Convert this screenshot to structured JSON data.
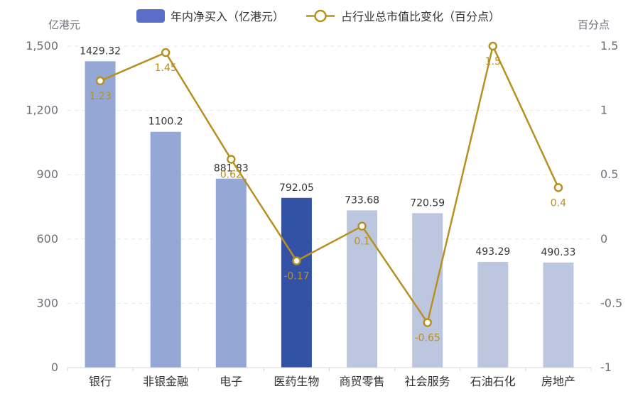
{
  "chart_data": {
    "type": "bar+line",
    "categories": [
      "银行",
      "非银金融",
      "电子",
      "医药生物",
      "商贸零售",
      "社会服务",
      "石油石化",
      "房地产"
    ],
    "series": [
      {
        "name": "年内净买入（亿港元）",
        "type": "bar",
        "axis": "left",
        "values": [
          1429.32,
          1100.2,
          881.83,
          792.05,
          733.68,
          720.59,
          493.29,
          490.33
        ],
        "value_labels": [
          "1429.32",
          "1100.2",
          "881.83",
          "792.05",
          "733.68",
          "720.59",
          "493.29",
          "490.33"
        ],
        "colors": [
          "#95a8d5",
          "#95a8d5",
          "#95a8d5",
          "#3352a6",
          "#bdc6df",
          "#bdc6df",
          "#bdc6df",
          "#bdc6df"
        ]
      },
      {
        "name": "占行业总市值比变化（百分点）",
        "type": "line",
        "axis": "right",
        "values": [
          1.23,
          1.45,
          0.62,
          -0.17,
          0.1,
          -0.65,
          1.5,
          0.4
        ],
        "value_labels": [
          "1.23",
          "1.45",
          "0.62",
          "-0.17",
          "0.1",
          "-0.65",
          "1.5",
          "0.4"
        ],
        "color": "#b8901f"
      }
    ],
    "y_left": {
      "unit": "亿港元",
      "min": 0,
      "max": 1500,
      "ticks": [
        0,
        300,
        600,
        900,
        1200,
        1500
      ],
      "tick_labels": [
        "0",
        "300",
        "600",
        "900",
        "1,200",
        "1,500"
      ]
    },
    "y_right": {
      "unit": "百分点",
      "min": -1,
      "max": 1.5,
      "ticks": [
        -1,
        -0.5,
        0,
        0.5,
        1,
        1.5
      ],
      "tick_labels": [
        "-1",
        "-0.5",
        "0",
        "0.5",
        "1",
        "1.5"
      ]
    },
    "grid": true,
    "legend_position": "top",
    "legend_swatch_color": "#5b6ec7"
  }
}
